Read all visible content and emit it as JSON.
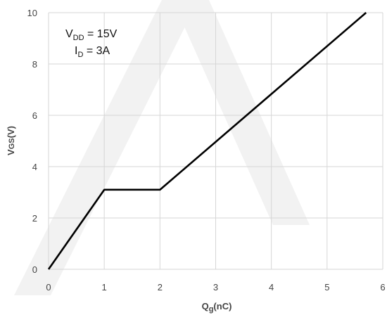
{
  "chart_data": {
    "type": "line",
    "x": [
      0,
      1,
      2,
      5.7
    ],
    "series": [
      {
        "values": [
          0,
          3.1,
          3.1,
          10
        ]
      }
    ],
    "xlabel": {
      "main": "Q",
      "sub": "g",
      "rest": "(nC)"
    },
    "ylabel": {
      "main": "V",
      "sub": "GS",
      "rest": "(V)"
    },
    "xlim": [
      0,
      6
    ],
    "ylim": [
      0,
      10
    ],
    "xticks": [
      0,
      1,
      2,
      3,
      4,
      5,
      6
    ],
    "yticks": [
      0,
      2,
      4,
      6,
      8,
      10
    ],
    "grid": true,
    "annotations": [
      {
        "main": "V",
        "sub": "DD",
        "rest": " = 15V"
      },
      {
        "main": "I",
        "sub": "D",
        "rest": " = 3A"
      }
    ],
    "colors": {
      "line": "#000000",
      "grid": "#d6d6d6",
      "watermark": "#f2f2f2"
    }
  }
}
